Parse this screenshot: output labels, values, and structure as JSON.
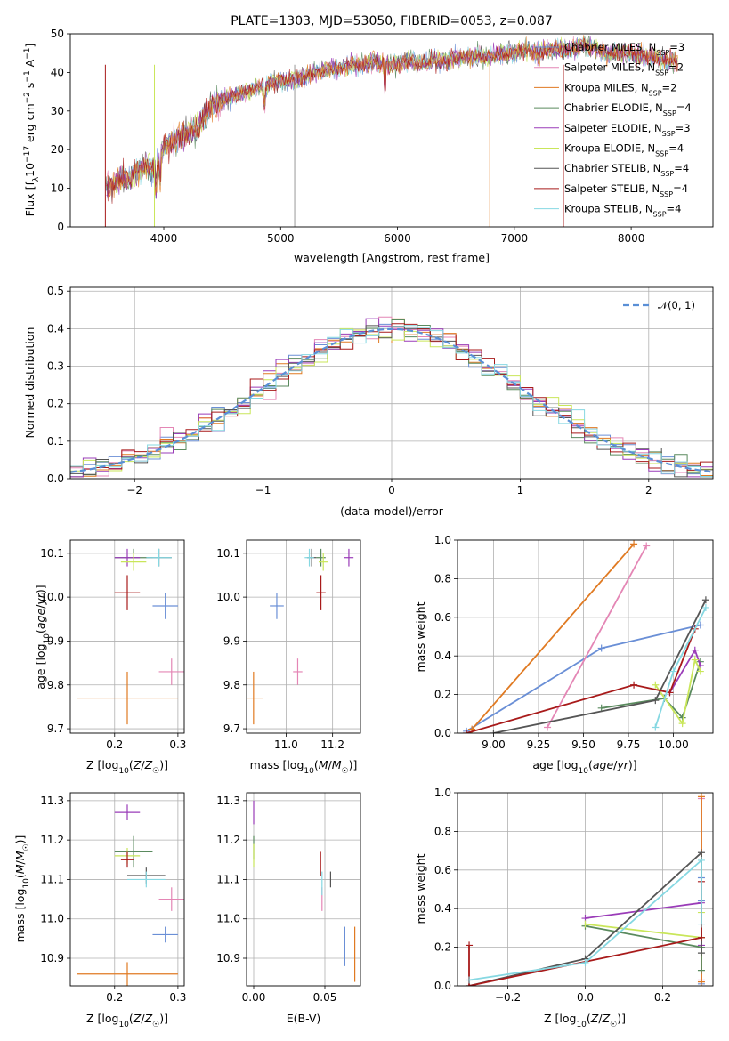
{
  "colors": {
    "Chabrier MILES": "#6a8fd6",
    "Salpeter MILES": "#e486b5",
    "Kroupa MILES": "#e07a22",
    "Chabrier ELODIE": "#5a8a5e",
    "Salpeter ELODIE": "#9a3cb8",
    "Kroupa ELODIE": "#c9e65a",
    "Chabrier STELIB": "#555555",
    "Salpeter STELIB": "#a81a1a",
    "Kroupa STELIB": "#86d8e2",
    "normal": "#5a8fd6",
    "grid": "#b0b0b0"
  },
  "chart_data": [
    {
      "id": "spectrum",
      "type": "line",
      "title": "PLATE=1303, MJD=53050, FIBERID=0053, z=0.087",
      "xlabel": "wavelength [Angstrom, rest frame]",
      "ylabel": "Flux [f_λ10^-17 erg cm^-2 s^-1 A^-1]",
      "xlim": [
        3200,
        8700
      ],
      "ylim": [
        0,
        50
      ],
      "xticks": [
        4000,
        5000,
        6000,
        7000,
        8000
      ],
      "yticks": [
        0,
        10,
        20,
        30,
        40,
        50
      ],
      "grid": false,
      "legend_position": "upper-right",
      "legend": [
        {
          "label": "Chabrier MILES, N",
          "sub": "SSP",
          "tail": "=3",
          "color": "#6a8fd6"
        },
        {
          "label": "Salpeter MILES, N",
          "sub": "SSP",
          "tail": "=2",
          "color": "#e486b5"
        },
        {
          "label": "Kroupa MILES, N",
          "sub": "SSP",
          "tail": "=2",
          "color": "#e07a22"
        },
        {
          "label": "Chabrier ELODIE, N",
          "sub": "SSP",
          "tail": "=4",
          "color": "#5a8a5e"
        },
        {
          "label": "Salpeter ELODIE, N",
          "sub": "SSP",
          "tail": "=3",
          "color": "#9a3cb8"
        },
        {
          "label": "Kroupa ELODIE, N",
          "sub": "SSP",
          "tail": "=4",
          "color": "#c9e65a"
        },
        {
          "label": "Chabrier STELIB, N",
          "sub": "SSP",
          "tail": "=4",
          "color": "#555555"
        },
        {
          "label": "Salpeter STELIB, N",
          "sub": "SSP",
          "tail": "=4",
          "color": "#a81a1a"
        },
        {
          "label": "Kroupa STELIB, N",
          "sub": "SSP",
          "tail": "=4",
          "color": "#86d8e2"
        }
      ],
      "series": [
        {
          "wavelength": [
            3500,
            3550,
            3600,
            3650,
            3700,
            3750,
            3800,
            3850,
            3900,
            3950,
            4000,
            4050,
            4100,
            4150,
            4200,
            4250,
            4300,
            4350,
            4400,
            4450,
            4500,
            4600,
            4700,
            4800,
            4900,
            5000,
            5100,
            5200,
            5300,
            5400,
            5500,
            5600,
            5700,
            5800,
            5900,
            6000,
            6100,
            6200,
            6300,
            6400,
            6500,
            6600,
            6700,
            6800,
            6900,
            7000,
            7100,
            7200,
            7300,
            7400,
            7500,
            7600,
            7700,
            7800,
            7900,
            8000,
            8100,
            8200,
            8300
          ],
          "flux": [
            10,
            11,
            12,
            13,
            12,
            14,
            15,
            16,
            15,
            16,
            21,
            22,
            22,
            24,
            24,
            25,
            26,
            29,
            31,
            32,
            33,
            34,
            35,
            36,
            37,
            38,
            38,
            39,
            40,
            41,
            41,
            42,
            42,
            43,
            42,
            42,
            43,
            42,
            43,
            43,
            44,
            44,
            44,
            44,
            45,
            45,
            46,
            45,
            46,
            46,
            46,
            47,
            46,
            45,
            45,
            45,
            44,
            44,
            43
          ]
        }
      ]
    },
    {
      "id": "residuals",
      "type": "histogram",
      "xlabel": "(data-model)/error",
      "ylabel": "Normed distribution",
      "xlim": [
        -2.5,
        2.5
      ],
      "ylim": [
        0,
        0.51
      ],
      "xticks": [
        -2,
        -1,
        0,
        1,
        2
      ],
      "yticks": [
        0.0,
        0.1,
        0.2,
        0.3,
        0.4,
        0.5
      ],
      "grid": true,
      "legend_position": "upper-right",
      "legend": [
        {
          "label": "𝒩(0, 1)",
          "color": "#5a8fd6",
          "style": "dashed"
        }
      ],
      "bin_width": 0.1,
      "normal_curve": {
        "mean": 0,
        "sigma": 1
      }
    },
    {
      "id": "age-vs-Z",
      "type": "errorbar",
      "xlabel": "Z [log10(Z/Z☉)]",
      "ylabel": "age [log10(age/yr)]",
      "xlim": [
        0.13,
        0.31
      ],
      "ylim": [
        9.69,
        10.13
      ],
      "xticks": [
        0.2,
        0.3
      ],
      "yticks": [
        9.7,
        9.8,
        9.9,
        10.0,
        10.1
      ],
      "grid": true,
      "points": [
        {
          "model": "Chabrier MILES",
          "x": 0.28,
          "xerr": 0.02,
          "y": 9.98,
          "yerr": 0.03
        },
        {
          "model": "Salpeter MILES",
          "x": 0.29,
          "xerr": 0.02,
          "y": 9.83,
          "yerr": 0.03
        },
        {
          "model": "Kroupa MILES",
          "x": 0.22,
          "xerr": 0.08,
          "y": 9.77,
          "yerr": 0.06
        },
        {
          "model": "Chabrier ELODIE",
          "x": 0.23,
          "xerr": 0.03,
          "y": 10.09,
          "yerr": 0.02
        },
        {
          "model": "Salpeter ELODIE",
          "x": 0.22,
          "xerr": 0.02,
          "y": 10.09,
          "yerr": 0.02
        },
        {
          "model": "Kroupa ELODIE",
          "x": 0.23,
          "xerr": 0.02,
          "y": 10.08,
          "yerr": 0.02
        },
        {
          "model": "Chabrier STELIB",
          "x": 0.27,
          "xerr": 0.02,
          "y": 10.09,
          "yerr": 0.02
        },
        {
          "model": "Salpeter STELIB",
          "x": 0.22,
          "xerr": 0.02,
          "y": 10.01,
          "yerr": 0.04
        },
        {
          "model": "Kroupa STELIB",
          "x": 0.27,
          "xerr": 0.02,
          "y": 10.09,
          "yerr": 0.02
        }
      ]
    },
    {
      "id": "age-vs-mass",
      "type": "errorbar",
      "xlabel": "mass [log10(M/M☉)]",
      "xlim": [
        10.83,
        11.32
      ],
      "ylim": [
        9.69,
        10.13
      ],
      "xticks": [
        11.0,
        11.2
      ],
      "yticks": [
        9.7,
        9.8,
        9.9,
        10.0,
        10.1
      ],
      "grid": true,
      "points": [
        {
          "model": "Chabrier MILES",
          "x": 10.96,
          "xerr": 0.03,
          "y": 9.98,
          "yerr": 0.03
        },
        {
          "model": "Salpeter MILES",
          "x": 11.05,
          "xerr": 0.02,
          "y": 9.83,
          "yerr": 0.03
        },
        {
          "model": "Kroupa MILES",
          "x": 10.86,
          "xerr": 0.04,
          "y": 9.77,
          "yerr": 0.06
        },
        {
          "model": "Chabrier ELODIE",
          "x": 11.15,
          "xerr": 0.02,
          "y": 10.09,
          "yerr": 0.02
        },
        {
          "model": "Salpeter ELODIE",
          "x": 11.27,
          "xerr": 0.02,
          "y": 10.09,
          "yerr": 0.02
        },
        {
          "model": "Kroupa ELODIE",
          "x": 11.16,
          "xerr": 0.02,
          "y": 10.08,
          "yerr": 0.02
        },
        {
          "model": "Chabrier STELIB",
          "x": 11.11,
          "xerr": 0.02,
          "y": 10.09,
          "yerr": 0.02
        },
        {
          "model": "Salpeter STELIB",
          "x": 11.15,
          "xerr": 0.02,
          "y": 10.01,
          "yerr": 0.04
        },
        {
          "model": "Kroupa STELIB",
          "x": 11.1,
          "xerr": 0.02,
          "y": 10.09,
          "yerr": 0.02
        }
      ]
    },
    {
      "id": "weight-vs-age",
      "type": "line",
      "xlabel": "age [log10(age/yr)]",
      "ylabel": "mass weight",
      "xlim": [
        8.8,
        10.22
      ],
      "ylim": [
        0,
        1.0
      ],
      "xticks": [
        9.0,
        9.25,
        9.5,
        9.75,
        10.0
      ],
      "yticks": [
        0.0,
        0.2,
        0.4,
        0.6,
        0.8,
        1.0
      ],
      "grid": true,
      "series": [
        {
          "model": "Chabrier MILES",
          "x": [
            8.85,
            9.6,
            10.15
          ],
          "y": [
            0.01,
            0.44,
            0.56
          ]
        },
        {
          "model": "Salpeter MILES",
          "x": [
            9.3,
            9.85
          ],
          "y": [
            0.03,
            0.97
          ]
        },
        {
          "model": "Kroupa MILES",
          "x": [
            8.88,
            9.78
          ],
          "y": [
            0.02,
            0.98
          ]
        },
        {
          "model": "Chabrier ELODIE",
          "x": [
            9.6,
            9.95,
            10.05,
            10.15
          ],
          "y": [
            0.13,
            0.18,
            0.08,
            0.37
          ]
        },
        {
          "model": "Salpeter ELODIE",
          "x": [
            9.98,
            10.12,
            10.15
          ],
          "y": [
            0.21,
            0.43,
            0.35
          ]
        },
        {
          "model": "Kroupa ELODIE",
          "x": [
            9.9,
            10.05,
            10.12,
            10.15
          ],
          "y": [
            0.25,
            0.05,
            0.38,
            0.32
          ]
        },
        {
          "model": "Chabrier STELIB",
          "x": [
            9.0,
            9.9,
            10.18
          ],
          "y": [
            0.0,
            0.17,
            0.69
          ]
        },
        {
          "model": "Salpeter STELIB",
          "x": [
            8.85,
            9.78,
            9.98,
            10.12
          ],
          "y": [
            0.0,
            0.25,
            0.21,
            0.54
          ]
        },
        {
          "model": "Kroupa STELIB",
          "x": [
            9.9,
            10.0,
            10.18
          ],
          "y": [
            0.03,
            0.32,
            0.65
          ]
        }
      ]
    },
    {
      "id": "mass-vs-Z",
      "type": "errorbar",
      "xlabel": "Z [log10(Z/Z☉)]",
      "ylabel": "mass [log10(M/M☉)]",
      "xlim": [
        0.13,
        0.31
      ],
      "ylim": [
        10.83,
        11.32
      ],
      "xticks": [
        0.2,
        0.3
      ],
      "yticks": [
        10.9,
        11.0,
        11.1,
        11.2,
        11.3
      ],
      "grid": true,
      "points": [
        {
          "model": "Chabrier MILES",
          "x": 0.28,
          "xerr": 0.02,
          "y": 10.96,
          "yerr": 0.02
        },
        {
          "model": "Salpeter MILES",
          "x": 0.29,
          "xerr": 0.02,
          "y": 11.05,
          "yerr": 0.03
        },
        {
          "model": "Kroupa MILES",
          "x": 0.22,
          "xerr": 0.08,
          "y": 10.86,
          "yerr": 0.03
        },
        {
          "model": "Chabrier ELODIE",
          "x": 0.23,
          "xerr": 0.03,
          "y": 11.17,
          "yerr": 0.04
        },
        {
          "model": "Salpeter ELODIE",
          "x": 0.22,
          "xerr": 0.02,
          "y": 11.27,
          "yerr": 0.02
        },
        {
          "model": "Kroupa ELODIE",
          "x": 0.22,
          "xerr": 0.02,
          "y": 11.16,
          "yerr": 0.02
        },
        {
          "model": "Chabrier STELIB",
          "x": 0.25,
          "xerr": 0.03,
          "y": 11.11,
          "yerr": 0.02
        },
        {
          "model": "Salpeter STELIB",
          "x": 0.22,
          "xerr": 0.01,
          "y": 11.15,
          "yerr": 0.02
        },
        {
          "model": "Kroupa STELIB",
          "x": 0.25,
          "xerr": 0.03,
          "y": 11.1,
          "yerr": 0.02
        }
      ]
    },
    {
      "id": "mass-vs-ebv",
      "type": "errorbar",
      "xlabel": "E(B-V)",
      "xlim": [
        -0.005,
        0.075
      ],
      "ylim": [
        10.83,
        11.32
      ],
      "xticks": [
        0.0,
        0.05
      ],
      "yticks": [
        10.9,
        11.0,
        11.1,
        11.2,
        11.3
      ],
      "grid": true,
      "points": [
        {
          "model": "Chabrier MILES",
          "x": 0.064,
          "y": 10.93,
          "yerr": 0.05
        },
        {
          "model": "Salpeter MILES",
          "x": 0.048,
          "y": 11.05,
          "yerr": 0.03
        },
        {
          "model": "Kroupa MILES",
          "x": 0.071,
          "y": 10.91,
          "yerr": 0.07
        },
        {
          "model": "Chabrier ELODIE",
          "x": 0.0,
          "y": 11.18,
          "yerr": 0.03
        },
        {
          "model": "Salpeter ELODIE",
          "x": 0.0,
          "y": 11.27,
          "yerr": 0.03
        },
        {
          "model": "Kroupa ELODIE",
          "x": 0.0,
          "y": 11.16,
          "yerr": 0.03
        },
        {
          "model": "Chabrier STELIB",
          "x": 0.054,
          "y": 11.1,
          "yerr": 0.02
        },
        {
          "model": "Salpeter STELIB",
          "x": 0.047,
          "y": 11.14,
          "yerr": 0.03
        },
        {
          "model": "Kroupa STELIB",
          "x": 0.048,
          "y": 11.09,
          "yerr": 0.03
        }
      ]
    },
    {
      "id": "weight-vs-Z",
      "type": "line",
      "xlabel": "Z [log10(Z/Z☉)]",
      "ylabel": "mass weight",
      "xlim": [
        -0.33,
        0.33
      ],
      "ylim": [
        0,
        1.0
      ],
      "xticks": [
        -0.2,
        0.0,
        0.2
      ],
      "yticks": [
        0.0,
        0.2,
        0.4,
        0.6,
        0.8,
        1.0
      ],
      "grid": true,
      "series": [
        {
          "model": "Chabrier MILES",
          "x": [
            0.3,
            0.3,
            0.3
          ],
          "y": [
            0.44,
            0.56,
            0.01
          ]
        },
        {
          "model": "Salpeter MILES",
          "x": [
            0.3,
            0.3
          ],
          "y": [
            0.97,
            0.03
          ]
        },
        {
          "model": "Kroupa MILES",
          "x": [
            0.3,
            0.3
          ],
          "y": [
            0.98,
            0.02
          ]
        },
        {
          "model": "Chabrier ELODIE",
          "x": [
            0.0,
            0.3,
            0.3
          ],
          "y": [
            0.31,
            0.2,
            0.08
          ]
        },
        {
          "model": "Salpeter ELODIE",
          "x": [
            0.0,
            0.3,
            0.3
          ],
          "y": [
            0.35,
            0.43,
            0.21
          ]
        },
        {
          "model": "Kroupa ELODIE",
          "x": [
            0.0,
            0.3,
            0.3
          ],
          "y": [
            0.32,
            0.25,
            0.38
          ]
        },
        {
          "model": "Chabrier STELIB",
          "x": [
            -0.3,
            0.0,
            0.3,
            0.3
          ],
          "y": [
            0.0,
            0.14,
            0.69,
            0.17
          ]
        },
        {
          "model": "Salpeter STELIB",
          "x": [
            -0.3,
            -0.3,
            0.3,
            0.3
          ],
          "y": [
            0.21,
            0.0,
            0.25,
            0.54
          ]
        },
        {
          "model": "Kroupa STELIB",
          "x": [
            -0.3,
            0.0,
            0.3,
            0.3
          ],
          "y": [
            0.03,
            0.12,
            0.65,
            0.32
          ]
        }
      ]
    }
  ]
}
